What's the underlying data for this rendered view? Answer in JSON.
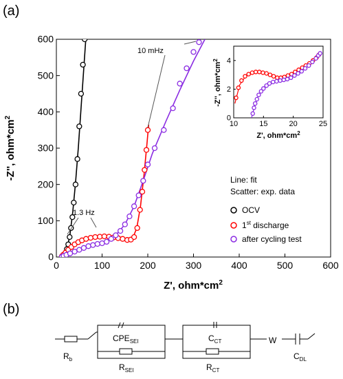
{
  "panel_a_label": "(a)",
  "panel_b_label": "(b)",
  "chart_data": [
    {
      "type": "scatter",
      "xlabel": "Z', ohm*cm",
      "xlabel_sup": "2",
      "ylabel": "-Z'', ohm*cm",
      "ylabel_sup": "2",
      "xlim": [
        0,
        600
      ],
      "ylim": [
        0,
        600
      ],
      "xticks": [
        0,
        100,
        200,
        300,
        400,
        500,
        600
      ],
      "yticks": [
        0,
        100,
        200,
        300,
        400,
        500,
        600
      ],
      "notes": [
        "Line: fit",
        "Scatter: exp. data"
      ],
      "annotations": [
        {
          "text": "10 mHz",
          "x": 310,
          "y": 592
        },
        {
          "text": "1.3 Hz",
          "x": 40,
          "y": 58
        }
      ],
      "series": [
        {
          "name": "OCV",
          "color": "#000000",
          "points": [
            [
              14,
              2
            ],
            [
              17,
              5
            ],
            [
              20,
              12
            ],
            [
              23,
              22
            ],
            [
              26,
              35
            ],
            [
              29,
              55
            ],
            [
              32,
              80
            ],
            [
              35,
              110
            ],
            [
              38,
              150
            ],
            [
              42,
              200
            ],
            [
              46,
              270
            ],
            [
              50,
              360
            ],
            [
              54,
              450
            ],
            [
              58,
              530
            ],
            [
              62,
              600
            ]
          ],
          "fit": [
            [
              12,
              0
            ],
            [
              18,
              6
            ],
            [
              24,
              25
            ],
            [
              30,
              65
            ],
            [
              36,
              125
            ],
            [
              42,
              205
            ],
            [
              48,
              300
            ],
            [
              54,
              410
            ],
            [
              60,
              520
            ],
            [
              66,
              630
            ]
          ]
        },
        {
          "name": "1st discharge",
          "name_parts": {
            "pre": "1",
            "sup": "st",
            "post": " discharge"
          },
          "color": "#ff0000",
          "points": [
            [
              12,
              2
            ],
            [
              15,
              6
            ],
            [
              20,
              12
            ],
            [
              26,
              20
            ],
            [
              33,
              28
            ],
            [
              40,
              35
            ],
            [
              48,
              41
            ],
            [
              56,
              46
            ],
            [
              65,
              50
            ],
            [
              75,
              53
            ],
            [
              85,
              55
            ],
            [
              95,
              56
            ],
            [
              105,
              57
            ],
            [
              115,
              56
            ],
            [
              125,
              54
            ],
            [
              135,
              52
            ],
            [
              145,
              50
            ],
            [
              155,
              47
            ],
            [
              163,
              48
            ],
            [
              170,
              55
            ],
            [
              177,
              80
            ],
            [
              183,
              130
            ],
            [
              188,
              180
            ],
            [
              193,
              240
            ],
            [
              197,
              295
            ],
            [
              200,
              350
            ]
          ],
          "fit": [
            [
              10,
              0
            ],
            [
              20,
              12
            ],
            [
              35,
              29
            ],
            [
              55,
              45
            ],
            [
              80,
              53
            ],
            [
              105,
              56
            ],
            [
              130,
              53
            ],
            [
              150,
              48
            ],
            [
              160,
              48
            ],
            [
              168,
              55
            ],
            [
              176,
              80
            ],
            [
              184,
              140
            ],
            [
              192,
              230
            ],
            [
              198,
              310
            ],
            [
              202,
              365
            ]
          ]
        },
        {
          "name": "after cycling test",
          "color": "#8a2be2",
          "points": [
            [
              12,
              1
            ],
            [
              16,
              3
            ],
            [
              22,
              6
            ],
            [
              30,
              10
            ],
            [
              40,
              15
            ],
            [
              50,
              20
            ],
            [
              60,
              25
            ],
            [
              70,
              30
            ],
            [
              80,
              33
            ],
            [
              90,
              36
            ],
            [
              100,
              38
            ],
            [
              110,
              42
            ],
            [
              120,
              50
            ],
            [
              130,
              60
            ],
            [
              140,
              72
            ],
            [
              150,
              90
            ],
            [
              160,
              112
            ],
            [
              170,
              140
            ],
            [
              180,
              170
            ],
            [
              190,
              210
            ],
            [
              200,
              255
            ],
            [
              215,
              300
            ],
            [
              235,
              350
            ],
            [
              255,
              410
            ],
            [
              270,
              478
            ],
            [
              285,
              520
            ],
            [
              300,
              565
            ],
            [
              312,
              592
            ]
          ],
          "fit": [
            [
              10,
              0
            ],
            [
              30,
              10
            ],
            [
              60,
              25
            ],
            [
              90,
              36
            ],
            [
              110,
              42
            ],
            [
              130,
              60
            ],
            [
              150,
              90
            ],
            [
              170,
              140
            ],
            [
              190,
              210
            ],
            [
              210,
              285
            ],
            [
              240,
              375
            ],
            [
              270,
              460
            ],
            [
              300,
              540
            ],
            [
              325,
              600
            ]
          ]
        }
      ]
    },
    {
      "type": "scatter",
      "role": "inset",
      "xlabel": "Z', ohm*cm",
      "xlabel_sup": "2",
      "ylabel": "-Z'', ohm*cm",
      "ylabel_sup": "2",
      "xlim": [
        10,
        25
      ],
      "ylim": [
        0,
        5
      ],
      "xticks": [
        10,
        15,
        20,
        25
      ],
      "yticks": [
        0,
        2,
        4
      ],
      "series": [
        {
          "name": "1st discharge",
          "color": "#ff0000",
          "points": [
            [
              10.4,
              1.4
            ],
            [
              10.8,
              2.1
            ],
            [
              11.3,
              2.6
            ],
            [
              11.9,
              2.9
            ],
            [
              12.5,
              3.05
            ],
            [
              13.1,
              3.15
            ],
            [
              13.7,
              3.2
            ],
            [
              14.3,
              3.2
            ],
            [
              14.9,
              3.15
            ],
            [
              15.5,
              3.1
            ],
            [
              16.1,
              3.0
            ],
            [
              16.7,
              2.9
            ],
            [
              17.3,
              2.8
            ],
            [
              17.9,
              2.8
            ],
            [
              18.5,
              2.85
            ],
            [
              19.1,
              2.95
            ],
            [
              19.7,
              3.05
            ],
            [
              20.3,
              3.2
            ],
            [
              20.9,
              3.35
            ],
            [
              21.5,
              3.5
            ],
            [
              22.1,
              3.65
            ],
            [
              22.7,
              3.8
            ],
            [
              23.3,
              4.0
            ],
            [
              23.9,
              4.2
            ],
            [
              24.3,
              4.4
            ]
          ],
          "fit": [
            [
              10.2,
              1.0
            ],
            [
              11,
              2.3
            ],
            [
              12,
              2.9
            ],
            [
              13.5,
              3.2
            ],
            [
              15,
              3.15
            ],
            [
              16.5,
              2.9
            ],
            [
              18,
              2.8
            ],
            [
              19.5,
              3.0
            ],
            [
              21,
              3.35
            ],
            [
              22.5,
              3.75
            ],
            [
              24.5,
              4.4
            ]
          ]
        },
        {
          "name": "after cycling test",
          "color": "#8a2be2",
          "points": [
            [
              13.2,
              0.3
            ],
            [
              13.4,
              0.7
            ],
            [
              13.6,
              1.0
            ],
            [
              13.9,
              1.3
            ],
            [
              14.2,
              1.6
            ],
            [
              14.6,
              1.85
            ],
            [
              15.0,
              2.05
            ],
            [
              15.5,
              2.25
            ],
            [
              16.0,
              2.4
            ],
            [
              16.6,
              2.5
            ],
            [
              17.2,
              2.55
            ],
            [
              17.8,
              2.6
            ],
            [
              18.4,
              2.65
            ],
            [
              19.0,
              2.7
            ],
            [
              19.6,
              2.8
            ],
            [
              20.2,
              2.95
            ],
            [
              20.8,
              3.1
            ],
            [
              21.4,
              3.25
            ],
            [
              22.0,
              3.45
            ],
            [
              22.6,
              3.65
            ],
            [
              23.2,
              3.9
            ],
            [
              23.8,
              4.15
            ],
            [
              24.2,
              4.35
            ],
            [
              24.5,
              4.5
            ]
          ],
          "fit": [
            [
              13.0,
              0
            ],
            [
              13.5,
              0.8
            ],
            [
              14.2,
              1.6
            ],
            [
              15,
              2.1
            ],
            [
              16,
              2.4
            ],
            [
              17.5,
              2.55
            ],
            [
              19,
              2.7
            ],
            [
              20.5,
              3.0
            ],
            [
              22,
              3.45
            ],
            [
              23.5,
              4.0
            ],
            [
              24.6,
              4.5
            ]
          ]
        }
      ]
    }
  ],
  "circuit": {
    "elements": [
      {
        "id": "Rb",
        "label": "R",
        "sub": "b"
      },
      {
        "id": "CPE_SEI",
        "label": "CPE",
        "sub": "SEI"
      },
      {
        "id": "R_SEI",
        "label": "R",
        "sub": "SEI"
      },
      {
        "id": "C_CT",
        "label": "C",
        "sub": "CT"
      },
      {
        "id": "R_CT",
        "label": "R",
        "sub": "CT"
      },
      {
        "id": "W",
        "label": "W",
        "sub": ""
      },
      {
        "id": "C_DL",
        "label": "C",
        "sub": "DL"
      }
    ]
  }
}
